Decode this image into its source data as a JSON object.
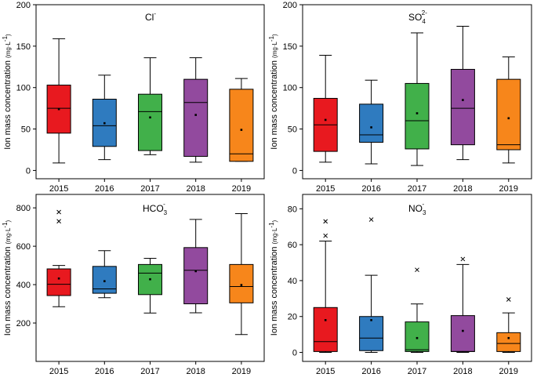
{
  "figure": {
    "ylabel": "Ion mass concentration",
    "unit": {
      "base": "(mg·L",
      "exp": "-1",
      "close": ")"
    }
  },
  "chart_data": [
    {
      "type": "box",
      "ion": {
        "main": "Cl",
        "sub": "",
        "sup": "-"
      },
      "categories": [
        "2015",
        "2016",
        "2017",
        "2018",
        "2019"
      ],
      "ylim": [
        -10,
        200
      ],
      "yticks": [
        0,
        50,
        100,
        150,
        200
      ],
      "colors": [
        "#e8191f",
        "#2f7bbf",
        "#41b04a",
        "#924a9e",
        "#f7861b"
      ],
      "boxes": [
        {
          "min": 9,
          "q1": 45,
          "median": 75,
          "q3": 103,
          "max": 159,
          "mean": 74,
          "outliers": []
        },
        {
          "min": 13,
          "q1": 29,
          "median": 54,
          "q3": 86,
          "max": 115,
          "mean": 57,
          "outliers": []
        },
        {
          "min": 19,
          "q1": 24,
          "median": 71,
          "q3": 92,
          "max": 136,
          "mean": 64,
          "outliers": []
        },
        {
          "min": 10,
          "q1": 17,
          "median": 82,
          "q3": 110,
          "max": 136,
          "mean": 67,
          "outliers": []
        },
        {
          "min": 11,
          "q1": 11,
          "median": 20,
          "q3": 98,
          "max": 111,
          "mean": 49,
          "outliers": []
        }
      ]
    },
    {
      "type": "box",
      "ion": {
        "main": "SO",
        "sub": "4",
        "sup": "2-"
      },
      "categories": [
        "2015",
        "2016",
        "2017",
        "2018",
        "2019"
      ],
      "ylim": [
        -10,
        200
      ],
      "yticks": [
        0,
        50,
        100,
        150,
        200
      ],
      "colors": [
        "#e8191f",
        "#2f7bbf",
        "#41b04a",
        "#924a9e",
        "#f7861b"
      ],
      "boxes": [
        {
          "min": 10,
          "q1": 23,
          "median": 55,
          "q3": 87,
          "max": 139,
          "mean": 61,
          "outliers": []
        },
        {
          "min": 8,
          "q1": 34,
          "median": 43,
          "q3": 80,
          "max": 109,
          "mean": 52,
          "outliers": []
        },
        {
          "min": 6,
          "q1": 26,
          "median": 60,
          "q3": 105,
          "max": 166,
          "mean": 69,
          "outliers": []
        },
        {
          "min": 13,
          "q1": 31,
          "median": 75,
          "q3": 122,
          "max": 174,
          "mean": 85,
          "outliers": []
        },
        {
          "min": 9,
          "q1": 25,
          "median": 31,
          "q3": 110,
          "max": 137,
          "mean": 63,
          "outliers": []
        }
      ]
    },
    {
      "type": "box",
      "ion": {
        "main": "HCO",
        "sub": "3",
        "sup": "-"
      },
      "categories": [
        "2015",
        "2016",
        "2017",
        "2018",
        "2019"
      ],
      "ylim": [
        0,
        870
      ],
      "yticks": [
        200,
        400,
        600,
        800
      ],
      "colors": [
        "#e8191f",
        "#2f7bbf",
        "#41b04a",
        "#924a9e",
        "#f7861b"
      ],
      "boxes": [
        {
          "min": 285,
          "q1": 343,
          "median": 402,
          "q3": 482,
          "max": 500,
          "mean": 432,
          "outliers": [
            730,
            778
          ]
        },
        {
          "min": 332,
          "q1": 355,
          "median": 378,
          "q3": 495,
          "max": 577,
          "mean": 418,
          "outliers": []
        },
        {
          "min": 252,
          "q1": 348,
          "median": 460,
          "q3": 505,
          "max": 537,
          "mean": 428,
          "outliers": []
        },
        {
          "min": 253,
          "q1": 300,
          "median": 475,
          "q3": 593,
          "max": 740,
          "mean": 470,
          "outliers": []
        },
        {
          "min": 140,
          "q1": 305,
          "median": 390,
          "q3": 505,
          "max": 770,
          "mean": 398,
          "outliers": []
        }
      ]
    },
    {
      "type": "box",
      "ion": {
        "main": "NO",
        "sub": "3",
        "sup": "-"
      },
      "categories": [
        "2015",
        "2016",
        "2017",
        "2018",
        "2019"
      ],
      "ylim": [
        -5,
        88
      ],
      "yticks": [
        0,
        20,
        40,
        60,
        80
      ],
      "colors": [
        "#e8191f",
        "#2f7bbf",
        "#41b04a",
        "#924a9e",
        "#f7861b"
      ],
      "boxes": [
        {
          "min": 0,
          "q1": 0.5,
          "median": 6,
          "q3": 25,
          "max": 62,
          "mean": 18,
          "outliers": [
            65,
            73
          ]
        },
        {
          "min": 0,
          "q1": 1,
          "median": 8,
          "q3": 20,
          "max": 43,
          "mean": 18,
          "outliers": [
            74
          ]
        },
        {
          "min": 0,
          "q1": 0.5,
          "median": 1.5,
          "q3": 17,
          "max": 27,
          "mean": 8,
          "outliers": [
            46
          ]
        },
        {
          "min": 0,
          "q1": 0.5,
          "median": 0.5,
          "q3": 20.5,
          "max": 49,
          "mean": 12,
          "outliers": [
            52
          ]
        },
        {
          "min": 0,
          "q1": 0.5,
          "median": 5,
          "q3": 11,
          "max": 22,
          "mean": 8,
          "outliers": [
            29.5
          ]
        }
      ]
    }
  ]
}
